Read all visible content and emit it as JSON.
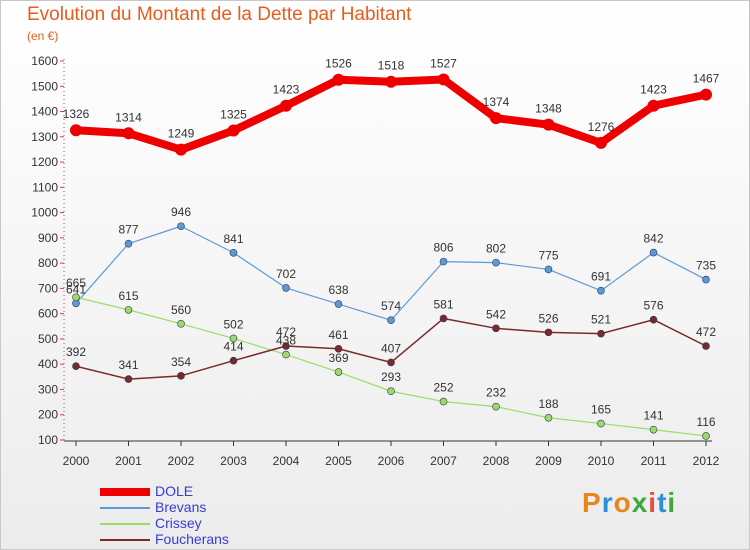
{
  "title": "Evolution du Montant de la Dette par Habitant",
  "subtitle": "(en €)",
  "brand": {
    "text": "Proxiti",
    "letters": [
      {
        "ch": "P",
        "color": "#e8861c"
      },
      {
        "ch": "r",
        "color": "#2f8fd8"
      },
      {
        "ch": "o",
        "color": "#e8861c"
      },
      {
        "ch": "x",
        "color": "#3aa83a"
      },
      {
        "ch": "i",
        "color": "#e84c3c"
      },
      {
        "ch": "t",
        "color": "#2f8fd8"
      },
      {
        "ch": "i",
        "color": "#3aa83a"
      }
    ]
  },
  "chart_data": {
    "type": "line",
    "title": "Evolution du Montant de la Dette par Habitant",
    "ylabel": "(en €)",
    "x": [
      "2000",
      "2001",
      "2002",
      "2003",
      "2004",
      "2005",
      "2006",
      "2007",
      "2008",
      "2009",
      "2010",
      "2011",
      "2012"
    ],
    "ylim": [
      100,
      1600
    ],
    "yticks": [
      100,
      200,
      300,
      400,
      500,
      600,
      700,
      800,
      900,
      1000,
      1100,
      1200,
      1300,
      1400,
      1500,
      1600
    ],
    "grid": false,
    "legend": "bottom-left",
    "series": [
      {
        "name": "DOLE",
        "color": "#ee0000",
        "values": [
          1326,
          1314,
          1249,
          1325,
          1423,
          1526,
          1518,
          1527,
          1374,
          1348,
          1276,
          1423,
          1467
        ]
      },
      {
        "name": "Brevans",
        "color": "#5b9bd5",
        "values": [
          641,
          877,
          946,
          841,
          702,
          638,
          574,
          806,
          802,
          775,
          691,
          842,
          735
        ]
      },
      {
        "name": "Crissey",
        "color": "#99dd66",
        "values": [
          665,
          615,
          560,
          502,
          438,
          369,
          293,
          252,
          232,
          188,
          165,
          141,
          116
        ]
      },
      {
        "name": "Foucherans",
        "color": "#7a2a2a",
        "values": [
          392,
          341,
          354,
          414,
          472,
          461,
          407,
          581,
          542,
          526,
          521,
          576,
          472
        ]
      }
    ]
  }
}
